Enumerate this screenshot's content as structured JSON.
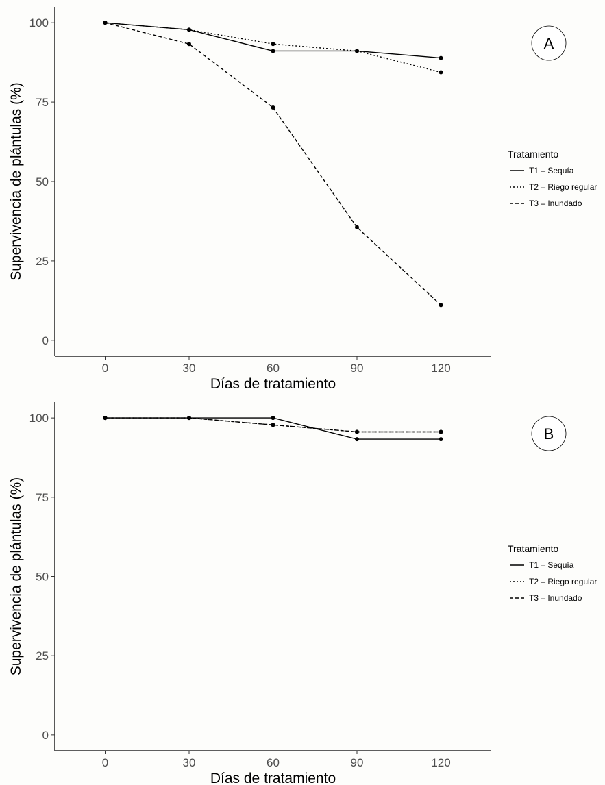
{
  "chart_data": [
    {
      "type": "line",
      "panel_label": "A",
      "x": [
        0,
        30,
        60,
        90,
        120
      ],
      "xlabel": "Días de tratamiento",
      "ylabel": "Supervivencia de plántulas (%)",
      "xlim": [
        -18,
        138
      ],
      "ylim": [
        -5,
        105
      ],
      "x_ticks": [
        "0",
        "30",
        "60",
        "90",
        "120"
      ],
      "y_ticks": [
        "0",
        "25",
        "50",
        "75",
        "100"
      ],
      "grid": false,
      "legend_title": "Tratamiento",
      "legend_position": "right",
      "series": [
        {
          "name": "T1 – Sequía",
          "dash": "solid",
          "values": [
            100,
            97.8,
            91.1,
            91.1,
            88.9
          ]
        },
        {
          "name": "T2 – Riego regular",
          "dash": "dotted",
          "values": [
            100,
            97.8,
            93.3,
            91.1,
            84.4
          ]
        },
        {
          "name": "T3 – Inundado",
          "dash": "dashed",
          "values": [
            100,
            93.3,
            73.3,
            35.6,
            11.1
          ]
        }
      ]
    },
    {
      "type": "line",
      "panel_label": "B",
      "x": [
        0,
        30,
        60,
        90,
        120
      ],
      "xlabel": "Días de tratamiento",
      "ylabel": "Supervivencia de plántulas (%)",
      "xlim": [
        -18,
        138
      ],
      "ylim": [
        -5,
        105
      ],
      "x_ticks": [
        "0",
        "30",
        "60",
        "90",
        "120"
      ],
      "y_ticks": [
        "0",
        "25",
        "50",
        "75",
        "100"
      ],
      "grid": false,
      "legend_title": "Tratamiento",
      "legend_position": "right",
      "series": [
        {
          "name": "T1 – Sequía",
          "dash": "solid",
          "values": [
            100,
            100,
            100,
            93.3,
            93.3
          ]
        },
        {
          "name": "T2 – Riego regular",
          "dash": "dotted",
          "values": [
            100,
            100,
            97.8,
            95.6,
            95.6
          ]
        },
        {
          "name": "T3 – Inundado",
          "dash": "dashed",
          "values": [
            100,
            100,
            97.8,
            95.6,
            95.6
          ]
        }
      ]
    }
  ]
}
